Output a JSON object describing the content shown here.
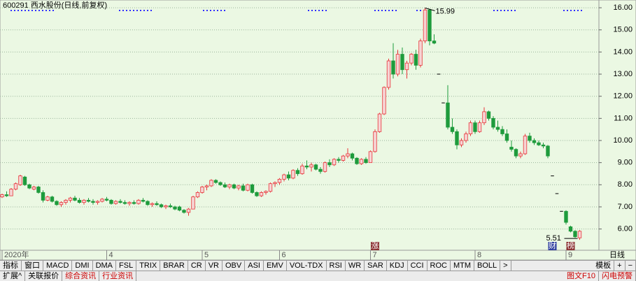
{
  "chart_data": {
    "type": "candlestick",
    "title": "600291 西水股份(日线,前复权)",
    "open": [
      7.45,
      7.55,
      7.5,
      7.8,
      8.0,
      8.35,
      8.0,
      7.8,
      7.9,
      7.65,
      7.3,
      7.45,
      7.25,
      7.1,
      7.2,
      7.3,
      7.4,
      7.3,
      7.2,
      7.3,
      7.25,
      7.2,
      7.25,
      7.35,
      7.3,
      7.15,
      7.25,
      7.2,
      7.15,
      7.2,
      7.15,
      7.3,
      7.25,
      7.1,
      7.15,
      7.1,
      7.0,
      7.05,
      7.0,
      7.0,
      6.85,
      6.75,
      6.9,
      7.45,
      7.65,
      7.9,
      7.95,
      8.2,
      8.1,
      8.0,
      7.9,
      8.0,
      7.85,
      7.95,
      7.75,
      8.0,
      7.65,
      7.5,
      7.65,
      7.7,
      8.05,
      8.1,
      8.25,
      8.45,
      8.3,
      8.65,
      8.5,
      8.85,
      8.8,
      8.9,
      8.7,
      8.6,
      9.0,
      8.9,
      9.15,
      9.1,
      9.3,
      9.4,
      9.2,
      8.95,
      9.15,
      9.0,
      9.5,
      10.4,
      11.2,
      12.4,
      13.6,
      13.0,
      13.9,
      13.2,
      13.5,
      13.9,
      13.4,
      14.5,
      15.9,
      14.5,
      13.0,
      11.7,
      11.7,
      10.6,
      10.4,
      9.8,
      10.0,
      10.3,
      10.8,
      10.4,
      10.8,
      11.3,
      11.0,
      10.6,
      10.5,
      10.3,
      9.7,
      9.6,
      9.3,
      9.4,
      10.2,
      10.0,
      9.9,
      9.8,
      9.75,
      8.4,
      7.6,
      6.8,
      6.8,
      6.1,
      5.9,
      5.6
    ],
    "high": [
      7.6,
      7.7,
      7.85,
      8.1,
      8.45,
      8.4,
      8.05,
      7.95,
      7.95,
      7.75,
      7.5,
      7.5,
      7.3,
      7.25,
      7.35,
      7.45,
      7.5,
      7.4,
      7.35,
      7.4,
      7.35,
      7.3,
      7.4,
      7.45,
      7.35,
      7.3,
      7.35,
      7.3,
      7.25,
      7.3,
      7.35,
      7.4,
      7.3,
      7.2,
      7.25,
      7.15,
      7.1,
      7.15,
      7.05,
      7.05,
      6.9,
      6.95,
      7.5,
      7.7,
      7.95,
      8.0,
      8.25,
      8.25,
      8.15,
      8.1,
      8.05,
      8.05,
      8.0,
      8.05,
      8.05,
      8.05,
      7.7,
      7.7,
      7.75,
      8.1,
      8.15,
      8.3,
      8.5,
      8.6,
      8.7,
      8.75,
      8.95,
      9.1,
      9.0,
      8.95,
      8.8,
      9.05,
      9.15,
      9.2,
      9.25,
      9.35,
      9.65,
      9.45,
      9.25,
      9.2,
      9.25,
      9.55,
      10.5,
      11.25,
      12.45,
      13.7,
      14.4,
      14.1,
      14.2,
      13.6,
      13.95,
      14.1,
      14.6,
      15.99,
      15.95,
      14.8,
      13.0,
      11.7,
      12.5,
      11.0,
      10.5,
      10.1,
      10.4,
      10.9,
      10.9,
      10.9,
      11.5,
      11.35,
      11.1,
      10.9,
      10.65,
      10.5,
      10.0,
      9.65,
      9.5,
      10.3,
      10.35,
      10.1,
      10.0,
      9.9,
      9.8,
      8.4,
      7.6,
      6.8,
      6.85,
      6.15,
      5.95,
      5.95
    ],
    "low": [
      7.4,
      7.45,
      7.5,
      7.75,
      7.95,
      7.95,
      7.8,
      7.75,
      7.6,
      7.2,
      7.25,
      7.2,
      7.05,
      7.0,
      7.1,
      7.2,
      7.25,
      7.15,
      7.1,
      7.2,
      7.1,
      7.1,
      7.2,
      7.25,
      7.1,
      7.1,
      7.15,
      7.1,
      7.05,
      7.1,
      7.1,
      7.2,
      7.05,
      7.0,
      7.05,
      6.95,
      6.9,
      6.95,
      6.85,
      6.8,
      6.7,
      6.6,
      6.9,
      7.4,
      7.6,
      7.75,
      7.9,
      8.05,
      7.95,
      7.85,
      7.8,
      7.8,
      7.75,
      7.7,
      7.7,
      7.6,
      7.45,
      7.45,
      7.55,
      7.65,
      7.9,
      8.0,
      8.15,
      8.2,
      8.25,
      8.4,
      8.45,
      8.7,
      8.6,
      8.65,
      8.5,
      8.55,
      8.8,
      8.85,
      9.0,
      9.05,
      9.2,
      9.1,
      8.9,
      8.9,
      8.95,
      9.0,
      9.45,
      10.35,
      11.15,
      12.3,
      12.8,
      12.9,
      13.0,
      12.8,
      13.4,
      13.2,
      13.3,
      14.4,
      14.3,
      14.35,
      13.0,
      11.7,
      10.5,
      10.3,
      9.6,
      9.7,
      9.9,
      10.2,
      10.3,
      10.35,
      10.7,
      10.9,
      10.5,
      10.4,
      10.2,
      9.9,
      9.5,
      9.2,
      9.2,
      9.35,
      9.9,
      9.8,
      9.75,
      9.65,
      9.2,
      8.4,
      7.6,
      6.8,
      6.2,
      5.85,
      5.6,
      5.51
    ],
    "close": [
      7.55,
      7.5,
      7.8,
      8.05,
      8.4,
      8.0,
      7.85,
      7.9,
      7.65,
      7.3,
      7.45,
      7.25,
      7.1,
      7.2,
      7.3,
      7.4,
      7.3,
      7.2,
      7.3,
      7.25,
      7.2,
      7.25,
      7.35,
      7.3,
      7.15,
      7.25,
      7.2,
      7.15,
      7.2,
      7.15,
      7.3,
      7.25,
      7.1,
      7.15,
      7.1,
      7.0,
      7.05,
      7.0,
      6.9,
      6.85,
      6.75,
      6.9,
      7.45,
      7.65,
      7.9,
      7.95,
      8.2,
      8.1,
      8.0,
      7.9,
      8.0,
      7.85,
      7.95,
      7.75,
      8.0,
      7.65,
      7.5,
      7.65,
      7.7,
      8.05,
      8.1,
      8.25,
      8.45,
      8.3,
      8.65,
      8.5,
      8.85,
      8.8,
      8.9,
      8.7,
      8.6,
      9.0,
      8.9,
      9.15,
      9.1,
      9.3,
      9.4,
      9.2,
      8.95,
      9.15,
      9.0,
      9.5,
      10.4,
      11.2,
      12.4,
      13.6,
      13.0,
      13.9,
      13.2,
      13.5,
      13.9,
      13.4,
      14.5,
      15.9,
      14.5,
      14.4,
      13.0,
      11.7,
      10.6,
      10.4,
      9.8,
      10.0,
      10.3,
      10.8,
      10.4,
      10.8,
      11.3,
      11.0,
      10.6,
      10.5,
      10.3,
      10.0,
      9.6,
      9.3,
      9.4,
      10.2,
      10.0,
      9.9,
      9.8,
      9.75,
      9.3,
      8.4,
      7.6,
      6.8,
      6.3,
      5.9,
      5.65,
      5.9
    ],
    "up_color": "#e8353a",
    "down_color": "#1e9b3c",
    "ylim": [
      5.04,
      16.35
    ],
    "yticks": [
      {
        "value": 6,
        "label": "6.00"
      },
      {
        "value": 7,
        "label": "7.00"
      },
      {
        "value": 8,
        "label": "8.00"
      },
      {
        "value": 9,
        "label": "9.00"
      },
      {
        "value": 10,
        "label": "10.00"
      },
      {
        "value": 11,
        "label": "11.00"
      },
      {
        "value": 12,
        "label": "12.00"
      },
      {
        "value": 13,
        "label": "13.00"
      },
      {
        "value": 14,
        "label": "14.00"
      },
      {
        "value": 15,
        "label": "15.00"
      },
      {
        "value": 16,
        "label": "16.00"
      }
    ],
    "xticks": [
      {
        "value": 0,
        "label": "2020年"
      },
      {
        "value": 23,
        "label": "4"
      },
      {
        "value": 44,
        "label": "5"
      },
      {
        "value": 61,
        "label": "6"
      },
      {
        "value": 81,
        "label": "7"
      },
      {
        "value": 104,
        "label": "8"
      },
      {
        "value": 124,
        "label": "9"
      }
    ],
    "grid": true,
    "annotations": [
      "15.99",
      "5.51"
    ],
    "markers": [
      {
        "index": 82,
        "label": "涨"
      },
      {
        "index": 121,
        "label": "财"
      },
      {
        "index": 125,
        "label": "榜"
      }
    ]
  },
  "period": "日线",
  "toolbar": {
    "tabs": [
      "指标",
      "窗口",
      "MACD",
      "DMI",
      "DMA",
      "FSL",
      "TRIX",
      "BRAR",
      "CR",
      "VR",
      "OBV",
      "ASI",
      "EMV",
      "VOL-TDX",
      "RSI",
      "WR",
      "SAR",
      "KDJ",
      "CCI",
      "ROC",
      "MTM",
      "BOLL",
      ">"
    ],
    "right": [
      "模板",
      "+",
      "−"
    ]
  },
  "bottom_bar": {
    "tabs": [
      "扩展^",
      "关联报价",
      "综合资讯",
      "行业资讯"
    ],
    "right": [
      "图文F10",
      "闪电预警"
    ]
  }
}
